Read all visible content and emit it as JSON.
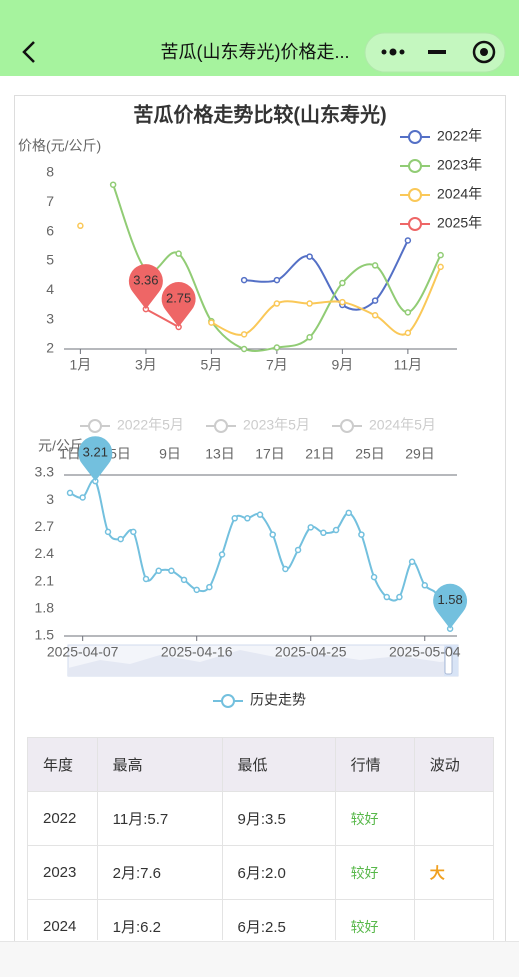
{
  "header": {
    "title": "苦瓜(山东寿光)价格走..."
  },
  "chart_data": [
    {
      "type": "line",
      "title": "苦瓜价格走势比较(山东寿光)",
      "y_label": "价格(元/公斤)",
      "categories": [
        "1月",
        null,
        "3月",
        null,
        "5月",
        null,
        "7月",
        null,
        "9月",
        null,
        "11月",
        null
      ],
      "ylim": [
        2,
        8
      ],
      "yticks": [
        2,
        3,
        4,
        5,
        6,
        7,
        8
      ],
      "smooth": true,
      "legend": "top-right",
      "series": [
        {
          "name": "2022年",
          "color": "#5470c6",
          "values": [
            null,
            null,
            null,
            null,
            null,
            4.35,
            4.35,
            5.15,
            3.5,
            3.65,
            5.7,
            null
          ]
        },
        {
          "name": "2023年",
          "color": "#91cc75",
          "values": [
            null,
            7.6,
            4.7,
            5.25,
            2.95,
            2.0,
            2.05,
            2.4,
            4.25,
            4.85,
            3.25,
            5.2
          ]
        },
        {
          "name": "2024年",
          "color": "#fac858",
          "values": [
            6.2,
            null,
            null,
            null,
            2.9,
            2.5,
            3.55,
            3.55,
            3.6,
            3.15,
            2.55,
            4.8
          ]
        },
        {
          "name": "2025年",
          "color": "#ee6666",
          "values": [
            null,
            null,
            3.36,
            2.75,
            null,
            null,
            null,
            null,
            null,
            null,
            null,
            null
          ],
          "mark_points": [
            "max",
            "min"
          ]
        }
      ]
    },
    {
      "type": "line",
      "y_label": "元/公斤",
      "inactive_legend": [
        "2022年5月",
        "2023年5月",
        "2024年5月"
      ],
      "x2_categories": [
        "1日",
        "5日",
        "9日",
        "13日",
        "17日",
        "21日",
        "25日",
        "29日"
      ],
      "categories": [
        null,
        "2025-04-07",
        null,
        null,
        null,
        null,
        null,
        null,
        null,
        null,
        "2025-04-16",
        null,
        null,
        null,
        null,
        null,
        null,
        null,
        null,
        "2025-04-25",
        null,
        null,
        null,
        null,
        null,
        null,
        null,
        null,
        "2025-05-04",
        null,
        null
      ],
      "ylim": [
        1.5,
        3.3
      ],
      "yticks": [
        1.5,
        1.8,
        2.1,
        2.4,
        2.7,
        3,
        3.3
      ],
      "smooth": true,
      "legend": "bottom",
      "series": [
        {
          "name": "历史走势",
          "color": "#73c0de",
          "values": [
            3.08,
            3.03,
            3.21,
            2.65,
            2.57,
            2.65,
            2.13,
            2.22,
            2.22,
            2.12,
            2.01,
            2.04,
            2.4,
            2.8,
            2.8,
            2.84,
            2.62,
            2.24,
            2.45,
            2.7,
            2.64,
            2.67,
            2.86,
            2.62,
            2.15,
            1.93,
            1.93,
            2.32,
            2.06,
            1.95,
            1.58
          ],
          "mark_points": [
            "max",
            "min"
          ]
        }
      ]
    }
  ],
  "table": {
    "headers": [
      "年度",
      "最高",
      "最低",
      "行情",
      "波动"
    ],
    "rows": [
      [
        "2022",
        "11月:5.7",
        "9月:3.5",
        "较好",
        null
      ],
      [
        "2023",
        "2月:7.6",
        "6月:2.0",
        "较好",
        "大"
      ],
      [
        "2024",
        "1月:6.2",
        "6月:2.5",
        "较好",
        null
      ]
    ]
  }
}
